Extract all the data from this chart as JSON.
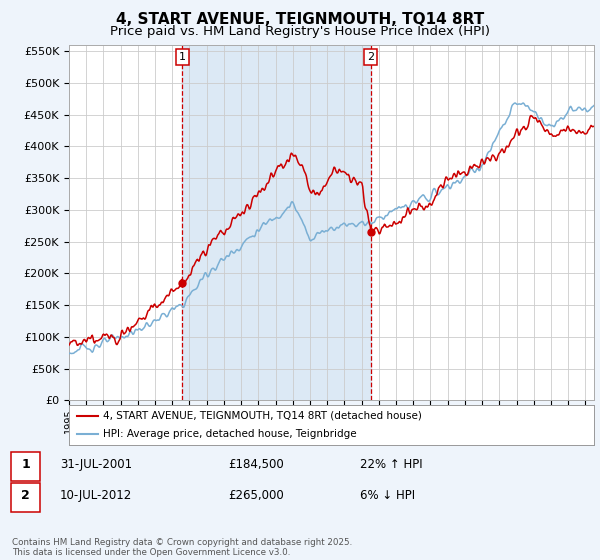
{
  "title": "4, START AVENUE, TEIGNMOUTH, TQ14 8RT",
  "subtitle": "Price paid vs. HM Land Registry's House Price Index (HPI)",
  "ylim": [
    0,
    560000
  ],
  "yticks": [
    0,
    50000,
    100000,
    150000,
    200000,
    250000,
    300000,
    350000,
    400000,
    450000,
    500000,
    550000
  ],
  "sale1_date": "31-JUL-2001",
  "sale1_price": 184500,
  "sale1_hpi_diff": "22% ↑ HPI",
  "sale2_date": "10-JUL-2012",
  "sale2_price": 265000,
  "sale2_hpi_diff": "6% ↓ HPI",
  "sale1_x": 2001.58,
  "sale2_x": 2012.52,
  "legend_line1": "4, START AVENUE, TEIGNMOUTH, TQ14 8RT (detached house)",
  "legend_line2": "HPI: Average price, detached house, Teignbridge",
  "footer": "Contains HM Land Registry data © Crown copyright and database right 2025.\nThis data is licensed under the Open Government Licence v3.0.",
  "line_color_red": "#cc0000",
  "line_color_blue": "#7aafd4",
  "shade_color": "#dce9f5",
  "vline_color": "#cc0000",
  "grid_color": "#cccccc",
  "background_color": "#eef4fb",
  "plot_bg_color": "#ffffff",
  "title_fontsize": 11,
  "subtitle_fontsize": 9.5,
  "tick_fontsize": 8,
  "xstart": 1995,
  "xend": 2025.5
}
